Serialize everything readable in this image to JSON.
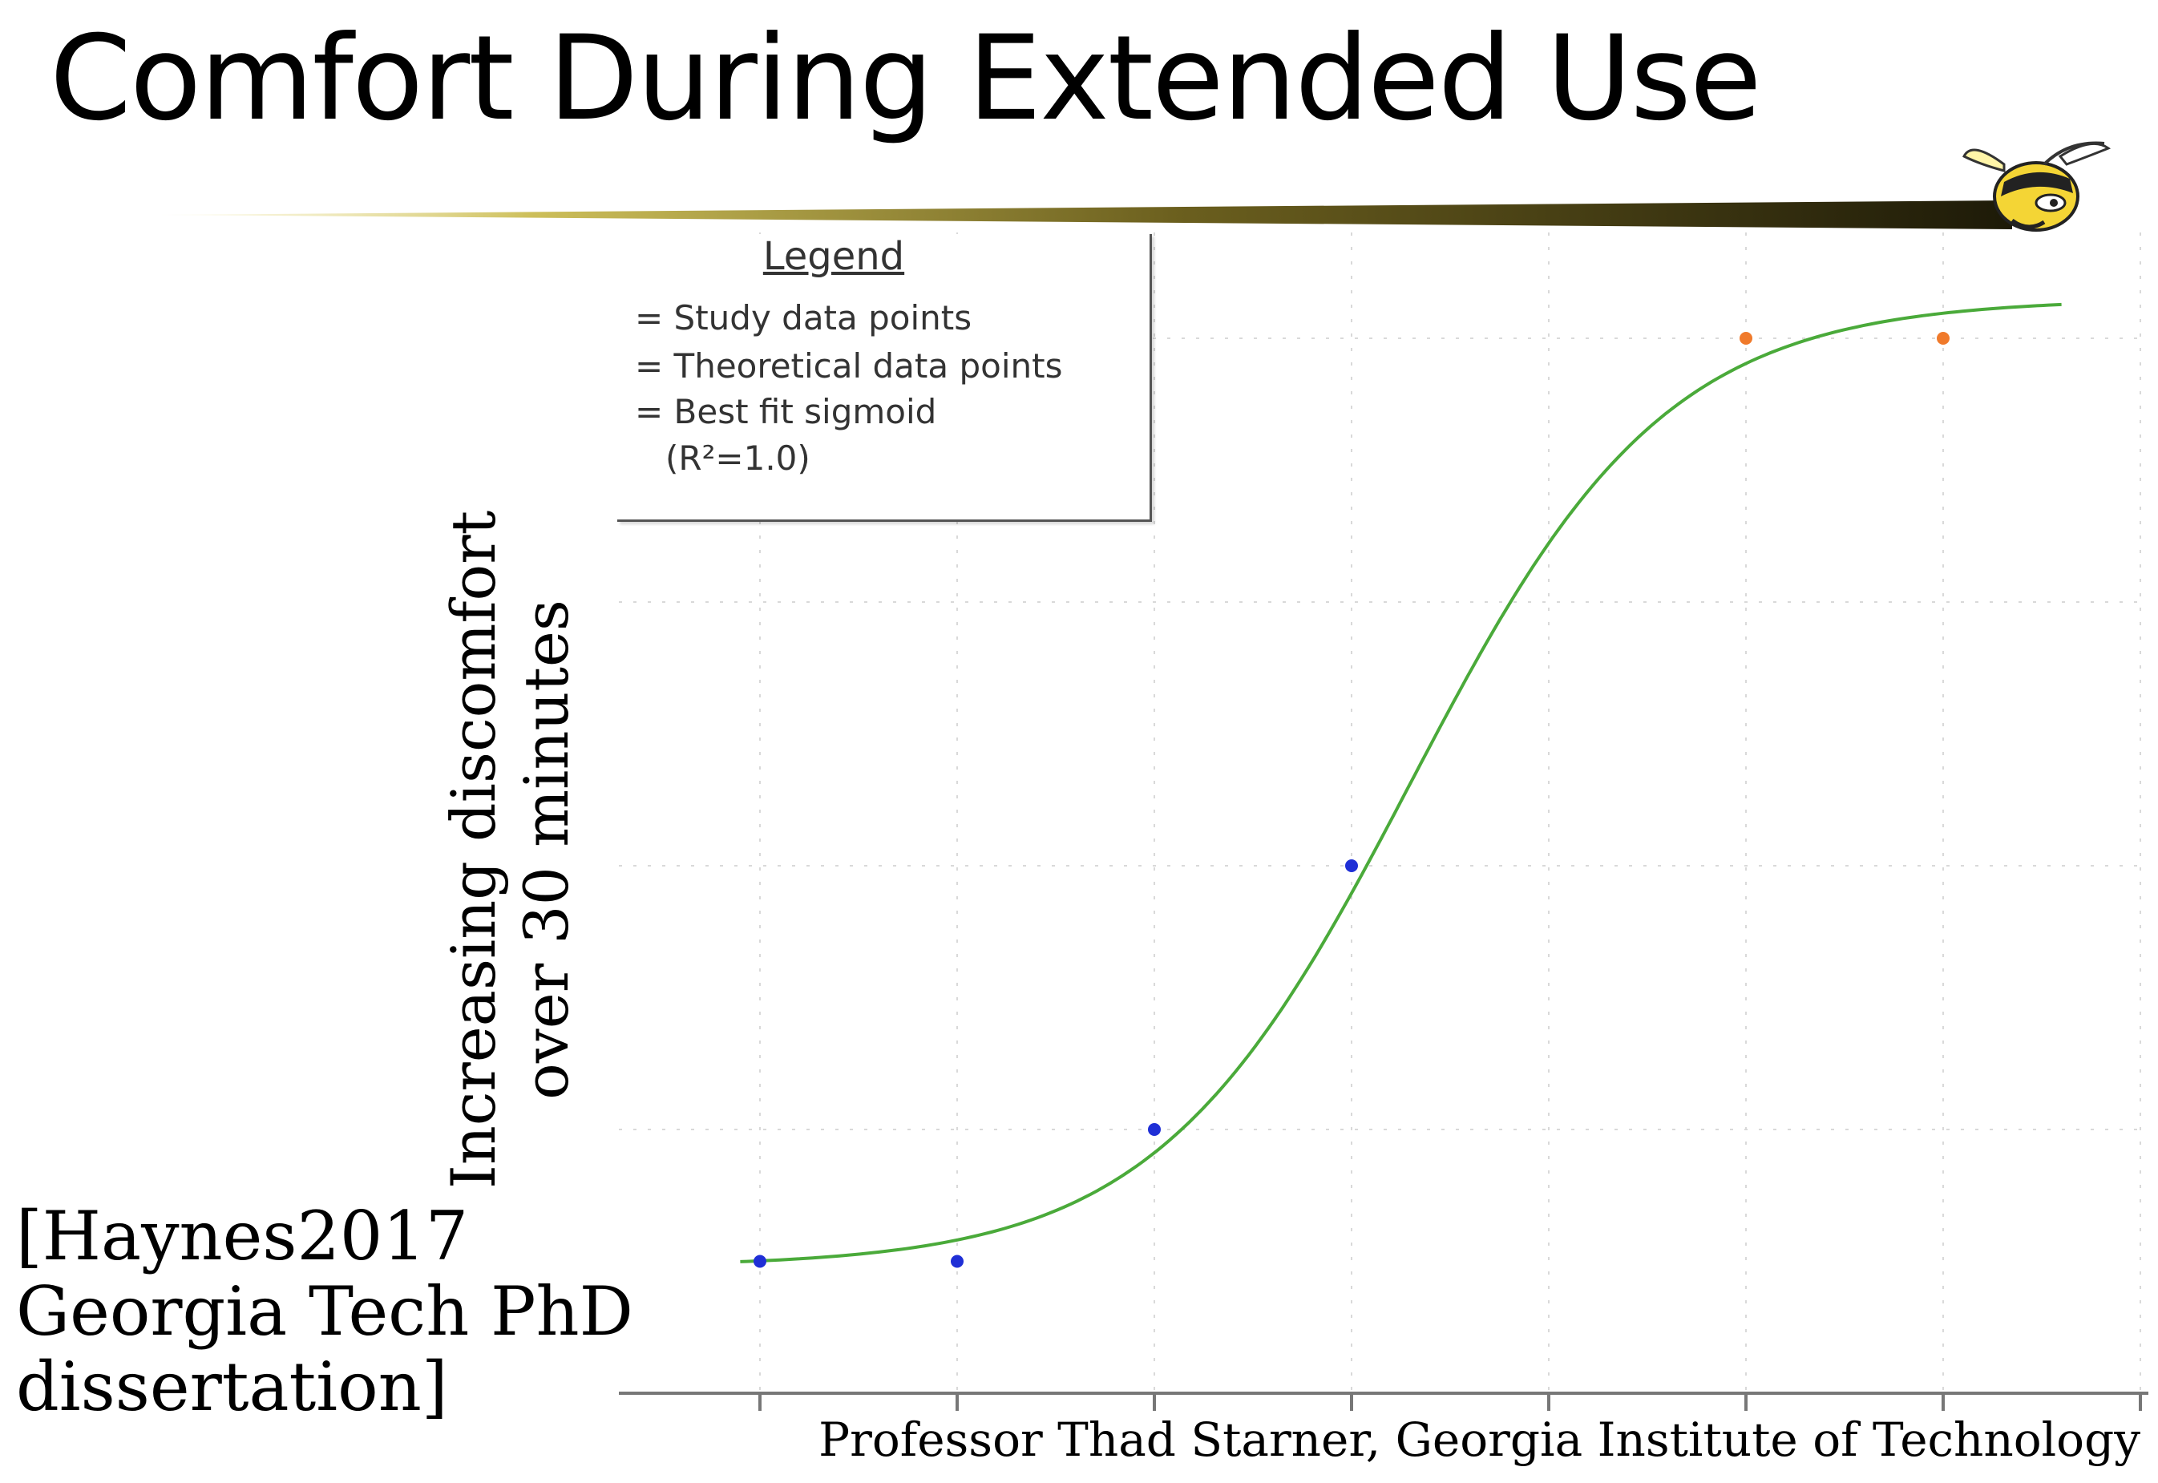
{
  "slide": {
    "title": "Comfort During Extended Use",
    "citation": "[Haynes2017\nGeorgia Tech PhD\ndissertation]",
    "footer": "Professor Thad Starner, Georgia Institute of Technology"
  },
  "chart_data": {
    "type": "scatter",
    "title": "",
    "xlabel": "",
    "ylabel": "Increasing discomfort\nover 30 minutes",
    "xlim": [
      0.3,
      7.3
    ],
    "ylim": [
      0,
      5.2
    ],
    "grid": true,
    "legend": {
      "placement": "top-left",
      "title": "Legend",
      "entries": [
        "= Study data points",
        "= Theoretical data points",
        "= Best fit sigmoid",
        "(R²=1.0)"
      ]
    },
    "series": [
      {
        "name": "Study data points",
        "kind": "points",
        "color": "#1f2fd6",
        "points": [
          [
            1,
            0.5
          ],
          [
            2,
            0.5
          ],
          [
            3,
            1.0
          ],
          [
            4,
            2.0
          ]
        ]
      },
      {
        "name": "Theoretical data points",
        "kind": "points",
        "color": "#f07a2b",
        "points": [
          [
            6,
            4.0
          ],
          [
            7,
            4.0
          ]
        ]
      },
      {
        "name": "Best fit sigmoid",
        "kind": "line",
        "color": "#4aaa3a",
        "x_range": [
          0.9,
          7.6
        ],
        "lower": 0.48,
        "upper": 4.15,
        "midpoint": 4.3,
        "slope": 1.55
      }
    ]
  }
}
